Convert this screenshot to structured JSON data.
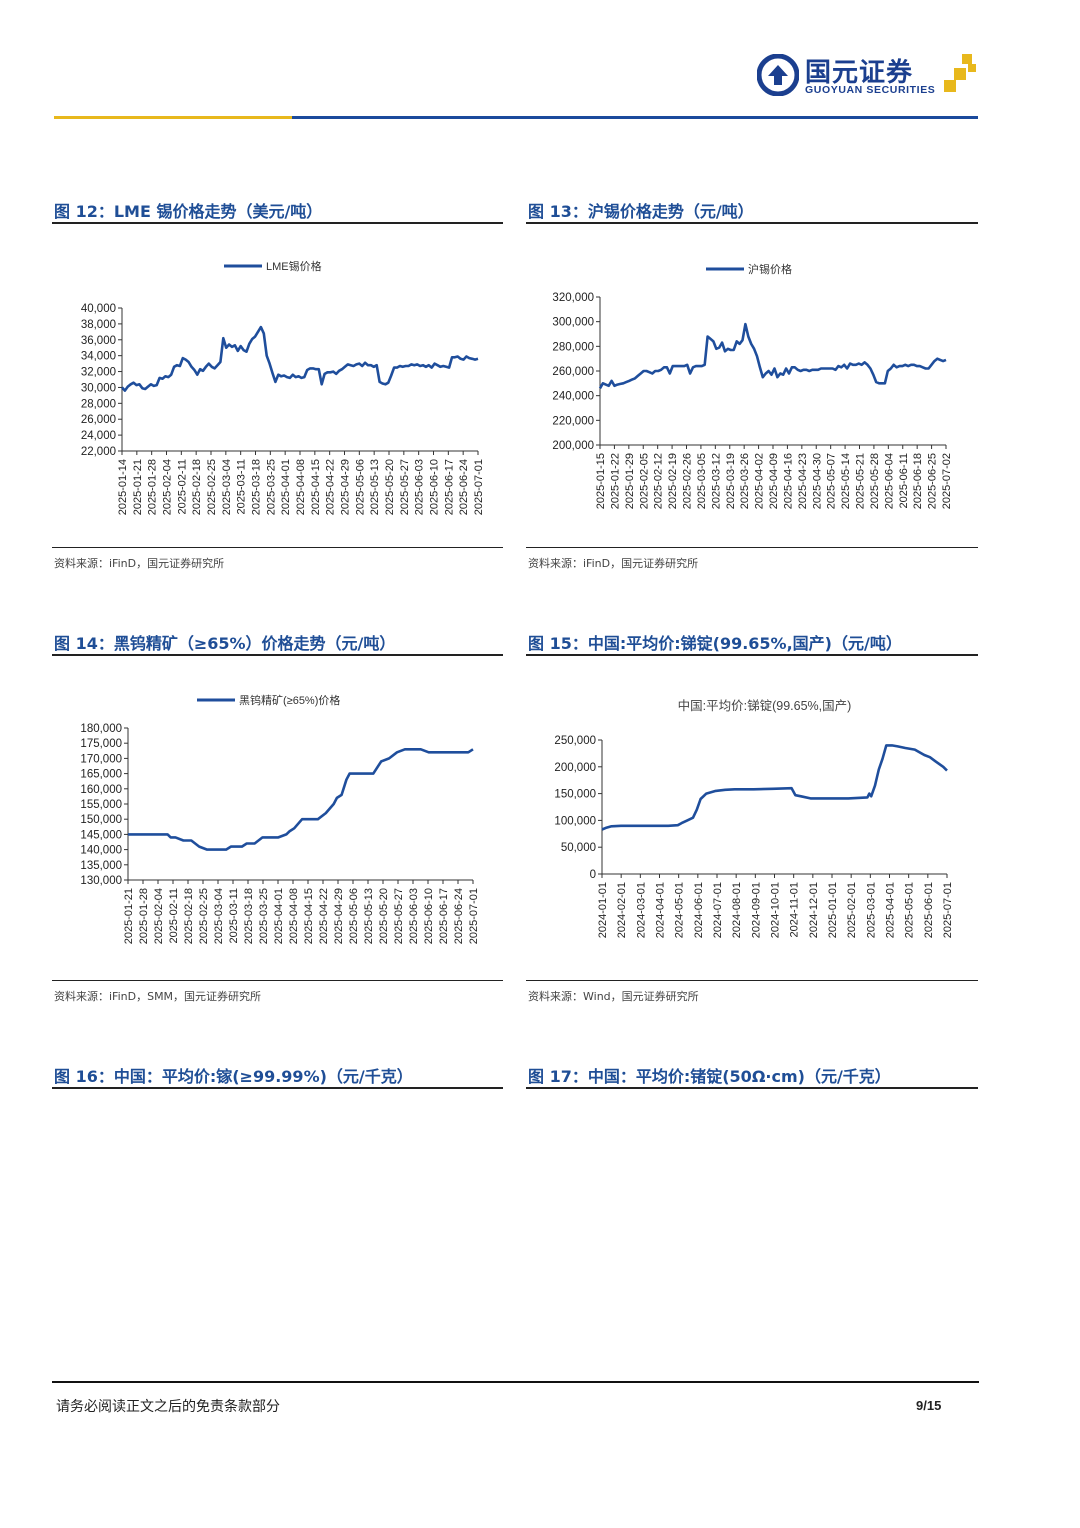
{
  "header": {
    "logo_cn": "国元证券",
    "logo_en": "GUOYUAN SECURITIES",
    "accent_gold": "#e8b81c",
    "accent_blue": "#1b4a9c"
  },
  "figures": [
    {
      "title": "图 12：LME 锡价格走势（美元/吨）",
      "source": "资料来源：iFinD，国元证券研究所",
      "chart_data": {
        "type": "line",
        "legend": "LME锡价格",
        "legend_position": "top-center",
        "ylim": [
          22000,
          40000
        ],
        "yticks": [
          "40,000",
          "38,000",
          "36,000",
          "34,000",
          "32,000",
          "30,000",
          "28,000",
          "26,000",
          "24,000",
          "22,000"
        ],
        "xticks": [
          "2025-01-14",
          "2025-01-21",
          "2025-01-28",
          "2025-02-04",
          "2025-02-11",
          "2025-02-18",
          "2025-02-25",
          "2025-03-04",
          "2025-03-11",
          "2025-03-18",
          "2025-03-25",
          "2025-04-01",
          "2025-04-08",
          "2025-04-15",
          "2025-04-22",
          "2025-04-29",
          "2025-05-06",
          "2025-05-13",
          "2025-05-20",
          "2025-05-27",
          "2025-06-03",
          "2025-06-10",
          "2025-06-17",
          "2025-06-24",
          "2025-07-01"
        ],
        "x": [
          0,
          1,
          2,
          3,
          4,
          5,
          6,
          7,
          8,
          9,
          10,
          11,
          12,
          13,
          14,
          15,
          16,
          17,
          18,
          19,
          20,
          21,
          22,
          23,
          24,
          25,
          26,
          27,
          28,
          29,
          30,
          31,
          32,
          33,
          34,
          35,
          36,
          37,
          38,
          39,
          40,
          41,
          42,
          43,
          44,
          45,
          46,
          47,
          48,
          49,
          50,
          51,
          52,
          53,
          54,
          55,
          56,
          57,
          58,
          59,
          60,
          61,
          62,
          63,
          64,
          65,
          66,
          67,
          68,
          69,
          70,
          71,
          72,
          73,
          74,
          75,
          76,
          77,
          78,
          79,
          80,
          81,
          82,
          83,
          84,
          85,
          86,
          87,
          88,
          89,
          90,
          91,
          92,
          93,
          94,
          95,
          96,
          97,
          98,
          99,
          100,
          101,
          102,
          103,
          104,
          105,
          106,
          107,
          108,
          109,
          110,
          111,
          112,
          113,
          114,
          115,
          116,
          117,
          118,
          119,
          120,
          121,
          122,
          123
        ],
        "values": [
          30000,
          29600,
          30100,
          30400,
          30600,
          30300,
          30400,
          29900,
          29800,
          30100,
          30400,
          30200,
          30300,
          31200,
          31100,
          31400,
          31300,
          31600,
          32600,
          32800,
          32700,
          33700,
          33500,
          33200,
          32600,
          32200,
          31600,
          32300,
          32100,
          32600,
          33000,
          32600,
          32400,
          32800,
          33200,
          36200,
          35000,
          35400,
          35100,
          35300,
          34600,
          35200,
          34700,
          34500,
          35500,
          36100,
          36400,
          37000,
          37600,
          36800,
          34000,
          33000,
          31800,
          30700,
          31600,
          31400,
          31500,
          31300,
          31200,
          31600,
          31300,
          31400,
          31200,
          31300,
          32200,
          32400,
          32400,
          32300,
          32300,
          30400,
          31700,
          31900,
          31900,
          32000,
          31700,
          32100,
          32300,
          32600,
          32900,
          32800,
          32700,
          32900,
          33000,
          32700,
          33100,
          32800,
          32800,
          32600,
          32800,
          30700,
          30500,
          30400,
          30600,
          31500,
          32500,
          32500,
          32700,
          32600,
          32700,
          32700,
          32900,
          32800,
          32900,
          32700,
          32800,
          32600,
          32800,
          32500,
          33000,
          32800,
          32600,
          32700,
          32600,
          32500,
          33800,
          33800,
          33900,
          33600,
          33500,
          33900,
          33700,
          33600,
          33500,
          33600
        ]
      }
    },
    {
      "title": "图 13：沪锡价格走势（元/吨）",
      "source": "资料来源：iFinD，国元证券研究所",
      "chart_data": {
        "type": "line",
        "legend": "沪锡价格",
        "legend_position": "top-center",
        "ylim": [
          200000,
          320000
        ],
        "yticks": [
          "320,000",
          "300,000",
          "280,000",
          "260,000",
          "240,000",
          "220,000",
          "200,000"
        ],
        "xticks": [
          "2025-01-15",
          "2025-01-22",
          "2025-01-29",
          "2025-02-05",
          "2025-02-12",
          "2025-02-19",
          "2025-02-26",
          "2025-03-05",
          "2025-03-12",
          "2025-03-19",
          "2025-03-26",
          "2025-04-02",
          "2025-04-09",
          "2025-04-16",
          "2025-04-23",
          "2025-04-30",
          "2025-05-07",
          "2025-05-14",
          "2025-05-21",
          "2025-05-28",
          "2025-06-04",
          "2025-06-11",
          "2025-06-18",
          "2025-06-25",
          "2025-07-02"
        ],
        "x": [
          0,
          1,
          2,
          3,
          4,
          5,
          6,
          7,
          8,
          9,
          10,
          11,
          12,
          13,
          14,
          15,
          16,
          17,
          18,
          19,
          20,
          21,
          22,
          23,
          24,
          25,
          26,
          27,
          28,
          29,
          30,
          31,
          32,
          33,
          34,
          35,
          36,
          37,
          38,
          39,
          40,
          41,
          42,
          43,
          44,
          45,
          46,
          47,
          48,
          49,
          50,
          51,
          52,
          53,
          54,
          55,
          56,
          57,
          58,
          59,
          60,
          61,
          62,
          63,
          64,
          65,
          66,
          67,
          68,
          69,
          70,
          71,
          72,
          73,
          74,
          75,
          76,
          77,
          78,
          79,
          80,
          81,
          82,
          83,
          84,
          85,
          86,
          87,
          88,
          89,
          90,
          91,
          92,
          93,
          94,
          95,
          96,
          97,
          98,
          99,
          100,
          101,
          102,
          103,
          104,
          105,
          106,
          107,
          108,
          109,
          110,
          111,
          112,
          113,
          114,
          115,
          116,
          117,
          118,
          119
        ],
        "values": [
          246000,
          250000,
          249000,
          248000,
          252000,
          248000,
          249000,
          249500,
          250000,
          251000,
          252000,
          253000,
          254000,
          256000,
          258000,
          260000,
          260000,
          259000,
          258000,
          260000,
          260000,
          261000,
          263000,
          263000,
          258000,
          264000,
          264000,
          264000,
          264000,
          264000,
          265000,
          258000,
          263000,
          264000,
          264000,
          264000,
          265000,
          288000,
          286000,
          284000,
          278000,
          279000,
          283000,
          276000,
          278000,
          277000,
          277000,
          284000,
          282000,
          285000,
          298000,
          288000,
          282000,
          278000,
          272000,
          263000,
          255000,
          258000,
          260000,
          257000,
          262000,
          255000,
          258000,
          257000,
          262000,
          258000,
          263000,
          263000,
          261000,
          260000,
          261000,
          261000,
          260000,
          261000,
          261000,
          261000,
          262000,
          262000,
          262000,
          262000,
          262000,
          261000,
          264000,
          263000,
          265000,
          262000,
          266000,
          265000,
          265000,
          266000,
          265000,
          267000,
          265000,
          262000,
          257000,
          251000,
          250000,
          250000,
          250000,
          260000,
          262000,
          265000,
          263000,
          264000,
          264000,
          265000,
          264000,
          265000,
          265000,
          264000,
          264000,
          263000,
          262000,
          262000,
          265000,
          268000,
          270000,
          269000,
          268000,
          269000
        ]
      }
    },
    {
      "title": "图 14：黑钨精矿（≥65%）价格走势（元/吨）",
      "source": "资料来源：iFinD，SMM，国元证券研究所",
      "chart_data": {
        "type": "line",
        "legend": "黑钨精矿(≥65%)价格",
        "legend_position": "top-center",
        "ylim": [
          130000,
          180000
        ],
        "yticks": [
          "180,000",
          "175,000",
          "170,000",
          "165,000",
          "160,000",
          "155,000",
          "150,000",
          "145,000",
          "140,000",
          "135,000",
          "130,000"
        ],
        "xticks": [
          "2025-01-21",
          "2025-01-28",
          "2025-02-04",
          "2025-02-11",
          "2025-02-18",
          "2025-02-25",
          "2025-03-04",
          "2025-03-11",
          "2025-03-18",
          "2025-03-25",
          "2025-04-01",
          "2025-04-08",
          "2025-04-15",
          "2025-04-22",
          "2025-04-29",
          "2025-05-06",
          "2025-05-13",
          "2025-05-20",
          "2025-05-27",
          "2025-06-03",
          "2025-06-10",
          "2025-06-17",
          "2025-06-24",
          "2025-07-01"
        ],
        "x": [
          0,
          5,
          10,
          15,
          20,
          25,
          27,
          30,
          35,
          36,
          40,
          45,
          50,
          52,
          55,
          60,
          62,
          65,
          70,
          72,
          75,
          80,
          85,
          87,
          90,
          95,
          100,
          102,
          105,
          110,
          115,
          118,
          120,
          125,
          130,
          132,
          135,
          138,
          140,
          142,
          145,
          148,
          150,
          155,
          160,
          165,
          170,
          175,
          180,
          185,
          190,
          195,
          200,
          205,
          210,
          215,
          218
        ],
        "values": [
          145000,
          145000,
          145000,
          145000,
          145000,
          145000,
          144000,
          144000,
          143000,
          143000,
          143000,
          141000,
          140000,
          140000,
          140000,
          140000,
          140000,
          141000,
          141000,
          141000,
          142000,
          142000,
          144000,
          144000,
          144000,
          144000,
          145000,
          146000,
          147000,
          150000,
          150000,
          150000,
          150000,
          152000,
          155000,
          157000,
          158000,
          163000,
          165000,
          165000,
          165000,
          165000,
          165000,
          165000,
          169000,
          170000,
          172000,
          173000,
          173000,
          173000,
          172000,
          172000,
          172000,
          172000,
          172000,
          172000,
          173000
        ]
      }
    },
    {
      "title": "图 15：中国:平均价:锑锭(99.65%,国产)（元/吨）",
      "source": "资料来源：Wind，国元证券研究所",
      "chart_data": {
        "type": "line",
        "title": "中国:平均价:锑锭(99.65%,国产)",
        "ylim": [
          0,
          250000
        ],
        "yticks": [
          "250,000",
          "200,000",
          "150,000",
          "100,000",
          "50,000",
          "0"
        ],
        "xticks": [
          "2024-01-01",
          "2024-02-01",
          "2024-03-01",
          "2024-04-01",
          "2024-05-01",
          "2024-06-01",
          "2024-07-01",
          "2024-08-01",
          "2024-09-01",
          "2024-10-01",
          "2024-11-01",
          "2024-12-01",
          "2025-01-01",
          "2025-02-01",
          "2025-03-01",
          "2025-04-01",
          "2025-05-01",
          "2025-06-01",
          "2025-07-01"
        ],
        "x": [
          0,
          0.2,
          0.5,
          1,
          1.5,
          2,
          2.5,
          3,
          3.5,
          4,
          4.2,
          4.5,
          4.8,
          5,
          5.2,
          5.5,
          6,
          6.5,
          7,
          8,
          9,
          10,
          10.2,
          10.5,
          11,
          11.5,
          12,
          12.5,
          13,
          13.5,
          14,
          14.1,
          14.2,
          14.3,
          14.4,
          14.5,
          14.6,
          14.8,
          15,
          15.3,
          15.6,
          16,
          16.5,
          17,
          17.3,
          17.6,
          18,
          18.2
        ],
        "values": [
          83000,
          86000,
          89000,
          90000,
          90000,
          90000,
          90000,
          90000,
          90000,
          91000,
          95000,
          100000,
          105000,
          120000,
          140000,
          150000,
          155000,
          157000,
          158000,
          158000,
          159000,
          160000,
          147000,
          145000,
          141000,
          141000,
          141000,
          141000,
          141000,
          142000,
          143000,
          150000,
          145000,
          155000,
          165000,
          180000,
          195000,
          215000,
          240000,
          240000,
          238000,
          235000,
          232000,
          222000,
          218000,
          210000,
          200000,
          193000
        ]
      }
    },
    {
      "title": "图 16：中国：平均价:镓(≥99.99%)（元/千克）"
    },
    {
      "title": "图 17：中国：平均价:锗锭(50Ω·cm)（元/千克）"
    }
  ],
  "footer": {
    "disclaimer": "请务必阅读正文之后的免责条款部分",
    "page": "9/15"
  }
}
